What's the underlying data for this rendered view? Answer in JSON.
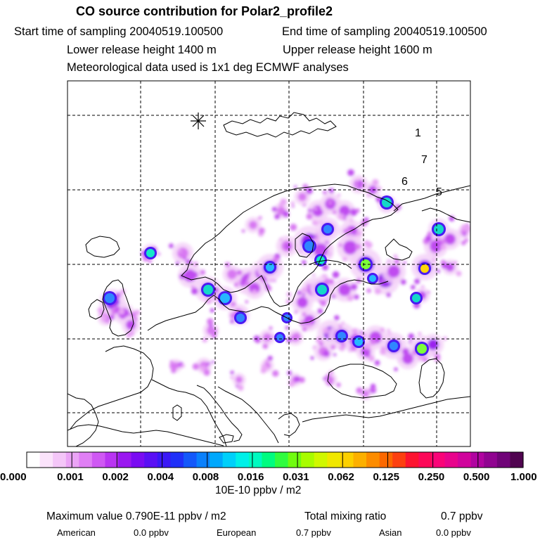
{
  "header": {
    "title": "CO  source contribution for Polar2_profile2",
    "start_label": "Start time of sampling 20040519.100500",
    "end_label": "End time of sampling 20040519.100500",
    "lower_label": "Lower release height 1400 m",
    "upper_label": "Upper release height 1600 m",
    "met_label": "Meteorological data used is 1x1 deg ECMWF analyses"
  },
  "map": {
    "marker_icon": "asterisk-release-marker-icon",
    "annotations": [
      "1",
      "7",
      "6",
      "5"
    ],
    "coastline_color": "#000000",
    "grid_style": "dashed"
  },
  "colorbar": {
    "tick_labels": [
      "0.000",
      "0.001",
      "0.002",
      "0.004",
      "0.008",
      "0.016",
      "0.031",
      "0.062",
      "0.125",
      "0.250",
      "0.500",
      "1.000"
    ],
    "colors": [
      "#ffffff",
      "#fbe3fb",
      "#f4c6f8",
      "#eba4f6",
      "#e07ff5",
      "#cf58f3",
      "#b934f2",
      "#9a18f0",
      "#7a0cf2",
      "#5a10f4",
      "#3a18f6",
      "#2030f8",
      "#1458fa",
      "#0a80fc",
      "#00a8fc",
      "#00d0fa",
      "#00f0e8",
      "#00fac0",
      "#00fc80",
      "#30fc40",
      "#70fc10",
      "#a8fc00",
      "#d0f800",
      "#f0e800",
      "#fcd000",
      "#fcb000",
      "#fc8c00",
      "#fc6800",
      "#fc4010",
      "#fc1430",
      "#fc0858",
      "#fa0478",
      "#e8048c",
      "#d0049c",
      "#b004a0",
      "#900490",
      "#700478",
      "#500450"
    ],
    "unit_label": "10E-10 ppbv / m2"
  },
  "footer": {
    "max_label": "Maximum value  0.790E-11 ppbv / m2",
    "total_label": "Total mixing ratio",
    "total_value": "0.7 ppbv",
    "american_label": "American",
    "american_value": "0.0 ppbv",
    "european_label": "European",
    "european_value": "0.7 ppbv",
    "asian_label": "Asian",
    "asian_value": "0.0 ppbv"
  }
}
